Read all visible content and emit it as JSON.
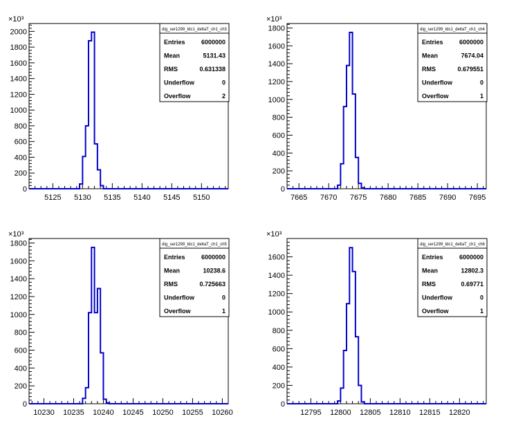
{
  "chart_data": [
    {
      "type": "histogram",
      "stats_title": "dig_ser1299_tdc1_deltaT_ch1_ch3",
      "stats": [
        {
          "label": "Entries",
          "value": "6000000"
        },
        {
          "label": "Mean",
          "value": "5131.43"
        },
        {
          "label": "RMS",
          "value": "0.631338"
        },
        {
          "label": "Underflow",
          "value": "0"
        },
        {
          "label": "Overflow",
          "value": "2"
        }
      ],
      "y_multiplier": "×10³",
      "xlim": [
        5121,
        5154.5
      ],
      "ylim": [
        0,
        2100
      ],
      "x_ticks": [
        5125,
        5130,
        5135,
        5140,
        5145,
        5150
      ],
      "x_tick_labels": [
        "5125",
        "5130",
        "5135",
        "5140",
        "5145",
        "5150"
      ],
      "y_ticks": [
        0,
        200,
        400,
        600,
        800,
        1000,
        1200,
        1400,
        1600,
        1800,
        2000
      ],
      "y_tick_labels": [
        "0",
        "200",
        "400",
        "600",
        "800",
        "1000",
        "1200",
        "1400",
        "1600",
        "1800",
        "2000"
      ],
      "bin_width": 0.5,
      "bins_x": [
        5129.5,
        5130,
        5130.5,
        5131,
        5131.5,
        5132,
        5132.5,
        5133
      ],
      "bins_y": [
        60,
        410,
        800,
        1880,
        1990,
        570,
        240,
        40
      ],
      "line_color": "#0000cc"
    },
    {
      "type": "histogram",
      "stats_title": "dig_ser1299_tdc1_deltaT_ch1_ch4",
      "stats": [
        {
          "label": "Entries",
          "value": "6000000"
        },
        {
          "label": "Mean",
          "value": "7674.04"
        },
        {
          "label": "RMS",
          "value": "0.679551"
        },
        {
          "label": "Underflow",
          "value": "0"
        },
        {
          "label": "Overflow",
          "value": "1"
        }
      ],
      "y_multiplier": "×10³",
      "xlim": [
        7663,
        7696.5
      ],
      "ylim": [
        0,
        1850
      ],
      "x_ticks": [
        7665,
        7670,
        7675,
        7680,
        7685,
        7690,
        7695
      ],
      "x_tick_labels": [
        "7665",
        "7670",
        "7675",
        "7680",
        "7685",
        "7690",
        "7695"
      ],
      "y_ticks": [
        0,
        200,
        400,
        600,
        800,
        1000,
        1200,
        1400,
        1600,
        1800
      ],
      "y_tick_labels": [
        "0",
        "200",
        "400",
        "600",
        "800",
        "1000",
        "1200",
        "1400",
        "1600",
        "1800"
      ],
      "bin_width": 0.5,
      "bins_x": [
        7671.5,
        7672,
        7672.5,
        7673,
        7673.5,
        7674,
        7674.5,
        7675,
        7675.5,
        7676
      ],
      "bins_y": [
        40,
        280,
        920,
        1380,
        1750,
        1060,
        350,
        60,
        10,
        0
      ],
      "line_color": "#0000cc"
    },
    {
      "type": "histogram",
      "stats_title": "dig_ser1299_tdc1_deltaT_ch1_ch5",
      "stats": [
        {
          "label": "Entries",
          "value": "6000000"
        },
        {
          "label": "Mean",
          "value": "10238.6"
        },
        {
          "label": "RMS",
          "value": "0.725663"
        },
        {
          "label": "Underflow",
          "value": "0"
        },
        {
          "label": "Overflow",
          "value": "1"
        }
      ],
      "y_multiplier": "×10³",
      "xlim": [
        10227.5,
        10261
      ],
      "ylim": [
        0,
        1850
      ],
      "x_ticks": [
        10230,
        10235,
        10240,
        10245,
        10250,
        10255,
        10260
      ],
      "x_tick_labels": [
        "10230",
        "10235",
        "10240",
        "10245",
        "10250",
        "10255",
        "10260"
      ],
      "y_ticks": [
        0,
        200,
        400,
        600,
        800,
        1000,
        1200,
        1400,
        1600,
        1800
      ],
      "y_tick_labels": [
        "0",
        "200",
        "400",
        "600",
        "800",
        "1000",
        "1200",
        "1400",
        "1600",
        "1800"
      ],
      "bin_width": 0.5,
      "bins_x": [
        10236.5,
        10237,
        10237.5,
        10238,
        10238.5,
        10239,
        10239.5,
        10240,
        10240.5
      ],
      "bins_y": [
        60,
        180,
        1020,
        1750,
        1020,
        1290,
        570,
        50,
        10
      ],
      "line_color": "#0000cc"
    },
    {
      "type": "histogram",
      "stats_title": "dig_ser1299_tdc1_deltaT_ch1_ch6",
      "stats": [
        {
          "label": "Entries",
          "value": "6000000"
        },
        {
          "label": "Mean",
          "value": "12802.3"
        },
        {
          "label": "RMS",
          "value": "0.69771"
        },
        {
          "label": "Underflow",
          "value": "0"
        },
        {
          "label": "Overflow",
          "value": "1"
        }
      ],
      "y_multiplier": "×10³",
      "xlim": [
        12791,
        12824.5
      ],
      "ylim": [
        0,
        1800
      ],
      "x_ticks": [
        12795,
        12800,
        12805,
        12810,
        12815,
        12820
      ],
      "x_tick_labels": [
        "12795",
        "12800",
        "12805",
        "12810",
        "12815",
        "12820"
      ],
      "y_ticks": [
        0,
        200,
        400,
        600,
        800,
        1000,
        1200,
        1400,
        1600
      ],
      "y_tick_labels": [
        "0",
        "200",
        "400",
        "600",
        "800",
        "1000",
        "1200",
        "1400",
        "1600"
      ],
      "bin_width": 0.5,
      "bins_x": [
        12799.5,
        12800,
        12800.5,
        12801,
        12801.5,
        12802,
        12802.5,
        12803,
        12803.5,
        12804
      ],
      "bins_y": [
        30,
        170,
        580,
        1090,
        1700,
        1440,
        730,
        200,
        20,
        0
      ],
      "line_color": "#0000cc"
    }
  ]
}
